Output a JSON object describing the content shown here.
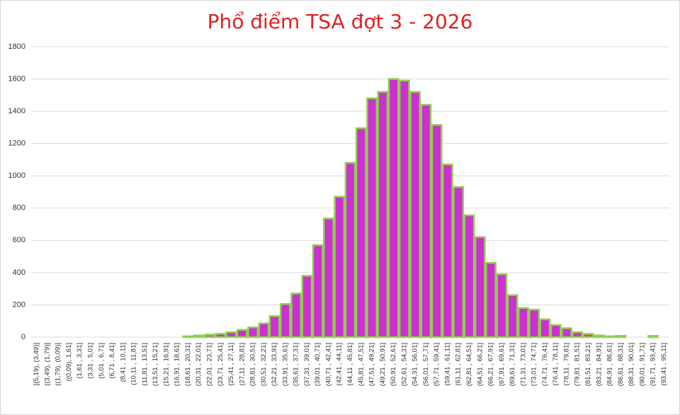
{
  "chart_data": {
    "type": "bar",
    "title": "Phổ điểm TSA đợt 3 - 2026",
    "categories": [
      "[(5,19), (3,49)]",
      "((3,49), (1,79)]",
      "((1,79), (0,09)]",
      "((0,09), 1,61]",
      "(1,61 , 3,31]",
      "(3,31 , 5,01]",
      "(5,01 , 6,71]",
      "(6,71 , 8,41]",
      "(8,41 , 10,11]",
      "(10,11 , 11,81]",
      "(11,81 , 13,51]",
      "(13,51 , 15,21]",
      "(15,21 , 16,91]",
      "(16,91 , 18,61]",
      "(18,61 , 20,31]",
      "(20,31 , 22,01]",
      "(22,01 , 23,71]",
      "(23,71 , 25,41]",
      "(25,41 , 27,11]",
      "(27,11 , 28,81]",
      "(28,81 , 30,51]",
      "(30,51 , 32,21]",
      "(32,21 , 33,91]",
      "(33,91 , 35,61]",
      "(35,61 , 37,31]",
      "(37,31 , 39,01]",
      "(39,01 , 40,71]",
      "(40,71 , 42,41]",
      "(42,41 , 44,11]",
      "(44,11 , 45,81]",
      "(45,81 , 47,51]",
      "(47,51 , 49,21]",
      "(49,21 , 50,91]",
      "(50,91 , 52,61]",
      "(52,61 , 54,31]",
      "(54,31 , 56,01]",
      "(56,01 , 57,71]",
      "(57,71 , 59,41]",
      "(59,41 , 61,11]",
      "(61,11 , 62,81]",
      "(62,81 , 64,51]",
      "(64,51 , 66,21]",
      "(66,21 , 67,91]",
      "(67,91 , 69,61]",
      "(69,61 , 71,31]",
      "(71,31 , 73,01]",
      "(73,01 , 74,71]",
      "(74,71 , 76,41]",
      "(76,41 , 78,11]",
      "(78,11 , 79,81]",
      "(79,81 , 81,51]",
      "(81,51 , 83,21]",
      "(83,21 , 84,91]",
      "(84,91 , 86,61]",
      "(86,61 , 88,31]",
      "(88,31 , 90,01]",
      "(90,01 , 91,71]",
      "(91,71 , 93,41]",
      "(93,41 , 95,11]"
    ],
    "values": [
      0,
      0,
      0,
      0,
      0,
      0,
      0,
      0,
      0,
      0,
      0,
      0,
      0,
      0,
      5,
      10,
      15,
      20,
      30,
      45,
      60,
      85,
      130,
      205,
      270,
      380,
      570,
      735,
      870,
      1080,
      1295,
      1480,
      1520,
      1600,
      1590,
      1520,
      1440,
      1315,
      1070,
      930,
      755,
      620,
      460,
      390,
      260,
      180,
      170,
      110,
      75,
      55,
      30,
      20,
      10,
      5,
      8,
      0,
      0,
      8,
      0
    ],
    "color": "#cc2fd2",
    "edge_color": "#8ed04e",
    "ylim": [
      0,
      1800
    ],
    "yticks": [
      0,
      200,
      400,
      600,
      800,
      1000,
      1200,
      1400,
      1600,
      1800
    ],
    "grid": true
  }
}
